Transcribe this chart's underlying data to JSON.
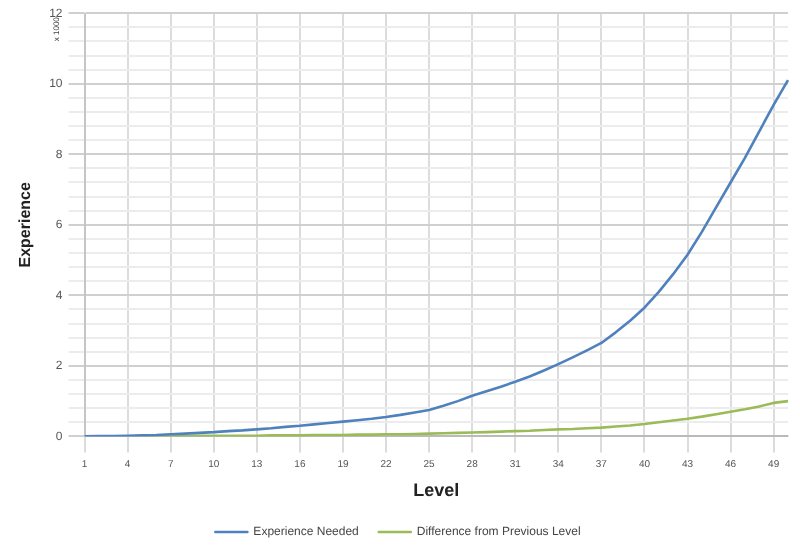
{
  "chart_data": {
    "type": "line",
    "xlabel": "Level",
    "ylabel": "Experience",
    "annotations": [
      "x 1000"
    ],
    "categories": [
      "1",
      null,
      null,
      "4",
      null,
      null,
      "7",
      null,
      null,
      "10",
      null,
      null,
      "13",
      null,
      null,
      "16",
      null,
      null,
      "19",
      null,
      null,
      "22",
      null,
      null,
      "25",
      null,
      null,
      "28",
      null,
      null,
      "31",
      null,
      null,
      "34",
      null,
      null,
      "37",
      null,
      null,
      "40",
      null,
      null,
      "43",
      null,
      null,
      "46",
      null,
      null,
      "49",
      null
    ],
    "series": [
      {
        "name": "Experience Needed",
        "color": "#4f81bd",
        "values": [
          0,
          0.01,
          0.01,
          0.02,
          0.03,
          0.04,
          0.06,
          0.08,
          0.1,
          0.12,
          0.15,
          0.17,
          0.2,
          0.23,
          0.27,
          0.3,
          0.34,
          0.38,
          0.42,
          0.46,
          0.5,
          0.55,
          0.61,
          0.68,
          0.75,
          0.87,
          1.0,
          1.15,
          1.28,
          1.41,
          1.55,
          1.7,
          1.87,
          2.05,
          2.24,
          2.44,
          2.65,
          2.95,
          3.28,
          3.65,
          4.1,
          4.6,
          5.15,
          5.8,
          6.5,
          7.2,
          7.9,
          8.65,
          9.4,
          10.1
        ]
      },
      {
        "name": "Difference from Previous Level",
        "color": "#9bbb59",
        "values": [
          null,
          null,
          null,
          null,
          0.01,
          0.01,
          0.01,
          0.01,
          0.02,
          0.02,
          0.02,
          0.02,
          0.02,
          0.03,
          0.03,
          0.03,
          0.04,
          0.04,
          0.04,
          0.05,
          0.05,
          0.06,
          0.06,
          0.07,
          0.08,
          0.09,
          0.1,
          0.11,
          0.12,
          0.135,
          0.15,
          0.16,
          0.18,
          0.2,
          0.21,
          0.23,
          0.25,
          0.28,
          0.31,
          0.35,
          0.4,
          0.45,
          0.5,
          0.56,
          0.63,
          0.7,
          0.77,
          0.85,
          0.95,
          1.0
        ]
      }
    ],
    "ylim": [
      0,
      12
    ],
    "yticks": [
      0,
      {
        "value": 0.4,
        "label": null
      },
      {
        "value": 0.8,
        "label": null
      },
      {
        "value": 1.2,
        "label": null
      },
      {
        "value": 1.6,
        "label": null
      },
      2,
      {
        "value": 2.4,
        "label": null
      },
      {
        "value": 2.8,
        "label": null
      },
      {
        "value": 3.2,
        "label": null
      },
      {
        "value": 3.6,
        "label": null
      },
      4,
      {
        "value": 4.4,
        "label": null
      },
      {
        "value": 4.8,
        "label": null
      },
      {
        "value": 5.2,
        "label": null
      },
      {
        "value": 5.6,
        "label": null
      },
      6,
      {
        "value": 6.4,
        "label": null
      },
      {
        "value": 6.8,
        "label": null
      },
      {
        "value": 7.2,
        "label": null
      },
      {
        "value": 7.6,
        "label": null
      },
      8,
      {
        "value": 8.4,
        "label": null
      },
      {
        "value": 8.8,
        "label": null
      },
      {
        "value": 9.2,
        "label": null
      },
      {
        "value": 9.6,
        "label": null
      },
      10,
      {
        "value": 10.4,
        "label": null
      },
      {
        "value": 10.8,
        "label": null
      },
      {
        "value": 11.2,
        "label": null
      },
      {
        "value": 11.6,
        "label": null
      },
      12
    ],
    "grid": true,
    "legend": "bottom",
    "marker": "none",
    "line_style": "solid"
  }
}
